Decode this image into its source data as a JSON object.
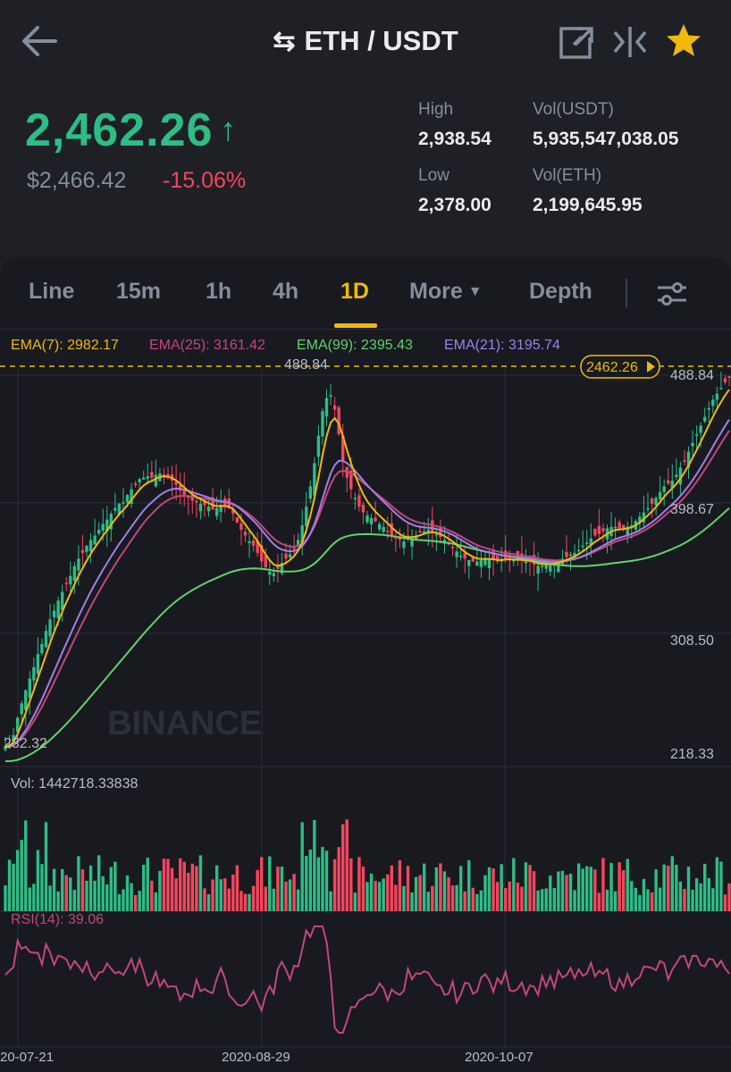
{
  "header": {
    "title": "ETH / USDT",
    "swap_icon": "swap-icon",
    "back_icon": "back-arrow-icon",
    "share_icon": "share-icon",
    "compare_icon": "compare-icon",
    "favorite_icon": "star-icon"
  },
  "ticker": {
    "last_price": "2,462.26",
    "direction_icon": "up-arrow-icon",
    "usd_value": "$2,466.42",
    "change_pct": "-15.06%",
    "high_label": "High",
    "high": "2,938.54",
    "low_label": "Low",
    "low": "2,378.00",
    "vol_usdt_label": "Vol(USDT)",
    "vol_usdt": "5,935,547,038.05",
    "vol_eth_label": "Vol(ETH)",
    "vol_eth": "2,199,645.95"
  },
  "tabs": [
    {
      "label": "Line"
    },
    {
      "label": "15m"
    },
    {
      "label": "1h"
    },
    {
      "label": "4h"
    },
    {
      "label": "1D",
      "active": true
    },
    {
      "label": "More"
    },
    {
      "label": "Depth"
    }
  ],
  "settings_icon": "settings-sliders-icon",
  "indicators": {
    "ema7": "EMA(7): 2982.17",
    "ema25": "EMA(25): 3161.42",
    "ema99": "EMA(99): 2395.43",
    "ema21": "EMA(21): 3195.74"
  },
  "colors": {
    "up": "#2ebd85",
    "down": "#f6465d",
    "accent": "#f0b90b",
    "ema7": "#f0b90b",
    "ema25": "#c2477b",
    "ema99": "#5fd36c",
    "ema21": "#a37ee8",
    "rsi": "#c2477b"
  },
  "chart": {
    "current_price_tag": "2462.26",
    "high_marker": "488.84",
    "low_marker": "232.32",
    "watermark": "BINANCE",
    "price_axis": [
      "488.84",
      "398.67",
      "308.50",
      "218.33"
    ],
    "volume_label": "Vol: 1442718.33838",
    "rsi_label": "RSI(14): 39.06",
    "date_labels": [
      "20-07-21",
      "2020-08-29",
      "2020-10-07"
    ]
  },
  "chart_data": {
    "type": "candlestick",
    "y_range": [
      218.33,
      488.84
    ],
    "close_path": [
      232,
      234,
      240,
      252,
      262,
      271,
      279,
      287,
      296,
      303,
      312,
      320,
      326,
      333,
      339,
      345,
      350,
      357,
      362,
      366,
      371,
      375,
      378,
      382,
      386,
      389,
      393,
      397,
      400,
      401,
      406,
      410,
      413,
      417,
      418,
      419,
      418,
      420,
      421,
      420,
      418,
      416,
      413,
      409,
      406,
      404,
      402,
      401,
      400,
      399,
      398,
      396,
      397,
      399,
      398,
      397,
      393,
      387,
      382,
      378,
      374,
      371,
      366,
      360,
      356,
      353,
      352,
      355,
      359,
      362,
      365,
      369,
      375,
      385,
      398,
      412,
      428,
      447,
      464,
      473,
      475,
      465,
      448,
      430,
      418,
      410,
      404,
      398,
      394,
      392,
      390,
      388,
      386,
      384,
      381,
      378,
      376,
      375,
      374,
      376,
      377,
      378,
      380,
      381,
      382,
      381,
      379,
      377,
      375,
      372,
      370,
      367,
      364,
      362,
      361,
      360,
      360,
      361,
      362,
      362,
      361,
      360,
      361,
      362,
      362,
      361,
      361,
      361,
      360,
      360,
      358,
      357,
      357,
      358,
      359,
      359,
      360,
      362,
      363,
      365,
      366,
      368,
      371,
      373,
      376,
      378,
      379,
      381,
      383,
      384,
      384,
      383,
      383,
      384,
      385,
      388,
      391,
      394,
      397,
      400,
      404,
      408,
      412,
      414,
      416,
      420,
      425,
      430,
      436,
      442,
      448,
      454,
      460,
      466,
      472,
      476,
      480,
      484,
      487
    ]
  }
}
